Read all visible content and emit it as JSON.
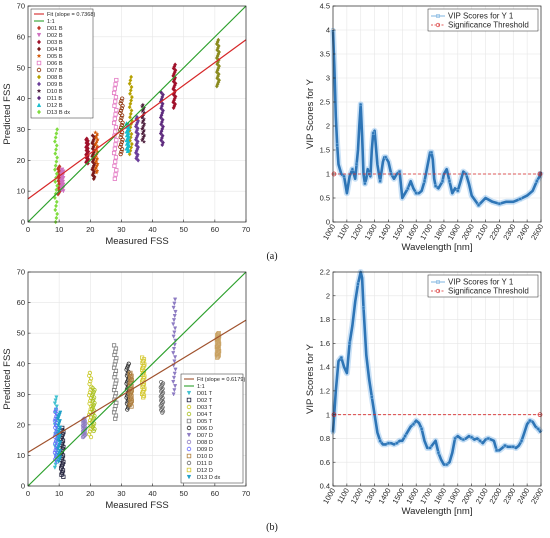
{
  "captions": {
    "a": "(a)",
    "b": "(b)"
  },
  "chart_data": [
    {
      "id": "a_scatter",
      "type": "scatter",
      "xlabel": "Measured FSS",
      "ylabel": "Predicted FSS",
      "xlim": [
        0,
        70
      ],
      "ylim": [
        0,
        70
      ],
      "xticks": [
        "0",
        "10",
        "20",
        "30",
        "40",
        "50",
        "60",
        "70"
      ],
      "yticks": [
        "0",
        "10",
        "20",
        "30",
        "40",
        "50",
        "60",
        "70"
      ],
      "grid": true,
      "legend_position": "top-left",
      "fit": {
        "label": "Fit (slope = 0.7368)",
        "slope": 0.7368,
        "intercept": 7.5,
        "color": "#d62728"
      },
      "identity": {
        "label": "1:1",
        "color": "#2ca02c"
      },
      "series": [
        {
          "name": "D01 B",
          "x": 10,
          "y_min": 9,
          "y_max": 18,
          "color": "#c0392b",
          "marker": "diamond"
        },
        {
          "name": "D02 B",
          "x": 11,
          "y_min": 10,
          "y_max": 17,
          "color": "#d070c0",
          "marker": "tri-down"
        },
        {
          "name": "D03 B",
          "x": 19,
          "y_min": 19,
          "y_max": 27,
          "color": "#a0102a",
          "marker": "diamond"
        },
        {
          "name": "D04 B",
          "x": 21,
          "y_min": 14,
          "y_max": 28,
          "color": "#7a1a1a",
          "marker": "diamond"
        },
        {
          "name": "D05 B",
          "x": 22,
          "y_min": 16,
          "y_max": 29,
          "color": "#d35400",
          "marker": "star"
        },
        {
          "name": "D06 B",
          "x": 28,
          "y_min": 14,
          "y_max": 46,
          "color": "#e377c2",
          "marker": "square"
        },
        {
          "name": "D07 B",
          "x": 30,
          "y_min": 22,
          "y_max": 40,
          "color": "#8c2d04",
          "marker": "circle"
        },
        {
          "name": "D08 B",
          "x": 33,
          "y_min": 22,
          "y_max": 47,
          "color": "#b5a000",
          "marker": "diamond"
        },
        {
          "name": "D09 B",
          "x": 35,
          "y_min": 20,
          "y_max": 34,
          "color": "#6a3d9a",
          "marker": "diamond"
        },
        {
          "name": "D10 B",
          "x": 37,
          "y_min": 26,
          "y_max": 38,
          "color": "#4b1c3a",
          "marker": "star"
        },
        {
          "name": "D11 B",
          "x": 43,
          "y_min": 25,
          "y_max": 42,
          "color": "#5e2b7e",
          "marker": "diamond"
        },
        {
          "name": "D12 B",
          "x": 32,
          "y_min": 23,
          "y_max": 32,
          "color": "#17becf",
          "marker": "tri-up"
        },
        {
          "name": "D13 B dx",
          "x": 9,
          "y_min": 0,
          "y_max": 30,
          "color": "#7fdc3e",
          "marker": "diamond"
        },
        {
          "name": "",
          "x": 47,
          "y_min": 37,
          "y_max": 51,
          "color": "#a0102a",
          "marker": "diamond"
        },
        {
          "name": "",
          "x": 61,
          "y_min": 44,
          "y_max": 59,
          "color": "#8a8a1e",
          "marker": "diamond"
        }
      ]
    },
    {
      "id": "a_vip",
      "type": "line",
      "xlabel": "Wavelength [nm]",
      "ylabel": "VIP Scores for Y",
      "xlim": [
        1000,
        2500
      ],
      "ylim": [
        0,
        4.5
      ],
      "xticks": [
        "1000",
        "1100",
        "1200",
        "1300",
        "1400",
        "1500",
        "1600",
        "1700",
        "1800",
        "1900",
        "2000",
        "2100",
        "2200",
        "2300",
        "2400",
        "2500"
      ],
      "yticks": [
        "0",
        "0.5",
        "1",
        "1.5",
        "2",
        "2.5",
        "3",
        "3.5",
        "4",
        "4.5"
      ],
      "grid": true,
      "legend_position": "top-right",
      "threshold": {
        "label": "Significance Threshold",
        "value": 1,
        "color": "#d62728"
      },
      "series": [
        {
          "name": "VIP Scores for Y 1",
          "color": "#2e75b6",
          "x": [
            1000,
            1010,
            1020,
            1030,
            1040,
            1060,
            1080,
            1100,
            1120,
            1140,
            1150,
            1160,
            1170,
            1180,
            1190,
            1200,
            1210,
            1220,
            1230,
            1240,
            1250,
            1260,
            1270,
            1280,
            1290,
            1300,
            1320,
            1340,
            1360,
            1370,
            1380,
            1390,
            1400,
            1420,
            1440,
            1460,
            1480,
            1500,
            1520,
            1540,
            1560,
            1580,
            1600,
            1620,
            1640,
            1660,
            1680,
            1700,
            1710,
            1720,
            1730,
            1740,
            1760,
            1780,
            1790,
            1800,
            1820,
            1840,
            1860,
            1880,
            1900,
            1920,
            1940,
            1960,
            1980,
            2000,
            2050,
            2100,
            2150,
            2200,
            2250,
            2300,
            2350,
            2400,
            2440,
            2470,
            2490,
            2500
          ],
          "y": [
            4.0,
            3.2,
            2.2,
            1.6,
            1.2,
            1.0,
            0.95,
            0.6,
            0.95,
            1.1,
            1.0,
            0.9,
            1.2,
            1.5,
            2.0,
            2.45,
            1.8,
            1.0,
            0.8,
            0.9,
            1.1,
            1.0,
            0.95,
            1.5,
            1.85,
            1.9,
            1.2,
            0.85,
            1.25,
            1.35,
            1.35,
            1.3,
            1.25,
            1.0,
            0.9,
            1.0,
            1.05,
            0.5,
            0.6,
            0.7,
            0.85,
            0.7,
            0.6,
            0.6,
            0.65,
            0.85,
            1.15,
            1.45,
            1.45,
            1.3,
            0.9,
            0.75,
            0.7,
            0.8,
            0.85,
            1.0,
            1.1,
            0.85,
            0.6,
            0.7,
            0.65,
            0.85,
            1.05,
            1.0,
            0.8,
            0.55,
            0.35,
            0.5,
            0.42,
            0.38,
            0.42,
            0.42,
            0.48,
            0.55,
            0.65,
            0.85,
            0.95,
            1.05
          ]
        }
      ]
    },
    {
      "id": "b_scatter",
      "type": "scatter",
      "xlabel": "Measured FSS",
      "ylabel": "Predicted FSS",
      "xlim": [
        0,
        70
      ],
      "ylim": [
        0,
        70
      ],
      "xticks": [
        "0",
        "10",
        "20",
        "30",
        "40",
        "50",
        "60",
        "70"
      ],
      "yticks": [
        "0",
        "10",
        "20",
        "30",
        "40",
        "50",
        "60",
        "70"
      ],
      "grid": true,
      "legend_position": "bottom-right",
      "fit": {
        "label": "Fit (slope = 0.6179)",
        "slope": 0.6179,
        "intercept": 11.0,
        "color": "#a0522d"
      },
      "identity": {
        "label": "1:1",
        "color": "#2ca02c"
      },
      "series": [
        {
          "name": "D01 T",
          "x": 9,
          "y_min": 6,
          "y_max": 29,
          "color": "#41c1d0",
          "marker": "tri-down"
        },
        {
          "name": "D02 T",
          "x": 11,
          "y_min": 3,
          "y_max": 19,
          "color": "#1f1f3a",
          "marker": "square"
        },
        {
          "name": "D03 T",
          "x": 20,
          "y_min": 16,
          "y_max": 37,
          "color": "#c8c820",
          "marker": "circle"
        },
        {
          "name": "D04 T",
          "x": 21,
          "y_min": 18,
          "y_max": 32,
          "color": "#a8c020",
          "marker": "circle"
        },
        {
          "name": "D05 T",
          "x": 28,
          "y_min": 22,
          "y_max": 46,
          "color": "#808080",
          "marker": "square"
        },
        {
          "name": "D06 D",
          "x": 32,
          "y_min": 25,
          "y_max": 40,
          "color": "#2a2a2a",
          "marker": "circle"
        },
        {
          "name": "D07 D",
          "x": 47,
          "y_min": 30,
          "y_max": 61,
          "color": "#8e7cc3",
          "marker": "tri-down"
        },
        {
          "name": "D08 D",
          "x": 18,
          "y_min": 16,
          "y_max": 22,
          "color": "#8e7cc3",
          "marker": "circle"
        },
        {
          "name": "D09 D",
          "x": 9,
          "y_min": 8,
          "y_max": 25,
          "color": "#6a6aff",
          "marker": "circle"
        },
        {
          "name": "D10 D",
          "x": 33,
          "y_min": 26,
          "y_max": 37,
          "color": "#b08040",
          "marker": "square"
        },
        {
          "name": "D11 D",
          "x": 43,
          "y_min": 24,
          "y_max": 34,
          "color": "#6b6b6b",
          "marker": "circle"
        },
        {
          "name": "D12 D",
          "x": 37,
          "y_min": 29,
          "y_max": 42,
          "color": "#d4c830",
          "marker": "square"
        },
        {
          "name": "D13 D dx",
          "x": 10,
          "y_min": 8,
          "y_max": 24,
          "color": "#1fa0c8",
          "marker": "tri-down"
        },
        {
          "name": "",
          "x": 61,
          "y_min": 42,
          "y_max": 50,
          "color": "#c8a060",
          "marker": "square"
        }
      ]
    },
    {
      "id": "b_vip",
      "type": "line",
      "xlabel": "Wavelength [nm]",
      "ylabel": "VIP Scores for Y",
      "xlim": [
        1000,
        2500
      ],
      "ylim": [
        0.4,
        2.2
      ],
      "xticks": [
        "1000",
        "1100",
        "1200",
        "1300",
        "1400",
        "1500",
        "1600",
        "1700",
        "1800",
        "1900",
        "2000",
        "2100",
        "2200",
        "2300",
        "2400",
        "2500"
      ],
      "yticks": [
        "0.4",
        "0.6",
        "0.8",
        "1",
        "1.2",
        "1.4",
        "1.6",
        "1.8",
        "2",
        "2.2"
      ],
      "grid": true,
      "legend_position": "top-right",
      "threshold": {
        "label": "Significance Threshold",
        "value": 1,
        "color": "#d62728"
      },
      "series": [
        {
          "name": "VIP Scores for Y 1",
          "color": "#2e75b6",
          "x": [
            1000,
            1020,
            1040,
            1060,
            1080,
            1100,
            1120,
            1140,
            1160,
            1180,
            1200,
            1210,
            1220,
            1240,
            1260,
            1280,
            1300,
            1320,
            1340,
            1360,
            1380,
            1400,
            1420,
            1440,
            1460,
            1480,
            1500,
            1520,
            1540,
            1560,
            1580,
            1600,
            1620,
            1640,
            1660,
            1680,
            1700,
            1720,
            1740,
            1760,
            1780,
            1800,
            1820,
            1840,
            1860,
            1880,
            1900,
            1920,
            1940,
            1960,
            1980,
            2000,
            2020,
            2040,
            2060,
            2080,
            2100,
            2120,
            2140,
            2160,
            2180,
            2200,
            2220,
            2240,
            2260,
            2280,
            2300,
            2320,
            2340,
            2360,
            2380,
            2400,
            2420,
            2440,
            2460,
            2480,
            2500
          ],
          "y": [
            0.85,
            1.2,
            1.45,
            1.48,
            1.4,
            1.35,
            1.6,
            1.75,
            1.95,
            2.1,
            2.2,
            2.15,
            1.9,
            1.5,
            1.3,
            1.15,
            1.0,
            0.85,
            0.78,
            0.75,
            0.75,
            0.76,
            0.76,
            0.75,
            0.76,
            0.78,
            0.78,
            0.82,
            0.86,
            0.9,
            0.92,
            0.95,
            0.93,
            0.88,
            0.78,
            0.72,
            0.72,
            0.75,
            0.78,
            0.68,
            0.62,
            0.58,
            0.58,
            0.6,
            0.68,
            0.8,
            0.82,
            0.8,
            0.79,
            0.8,
            0.82,
            0.81,
            0.79,
            0.8,
            0.78,
            0.76,
            0.79,
            0.8,
            0.79,
            0.78,
            0.7,
            0.7,
            0.72,
            0.74,
            0.73,
            0.73,
            0.73,
            0.72,
            0.74,
            0.78,
            0.85,
            0.92,
            0.95,
            0.94,
            0.9,
            0.88,
            0.85
          ]
        }
      ]
    }
  ]
}
